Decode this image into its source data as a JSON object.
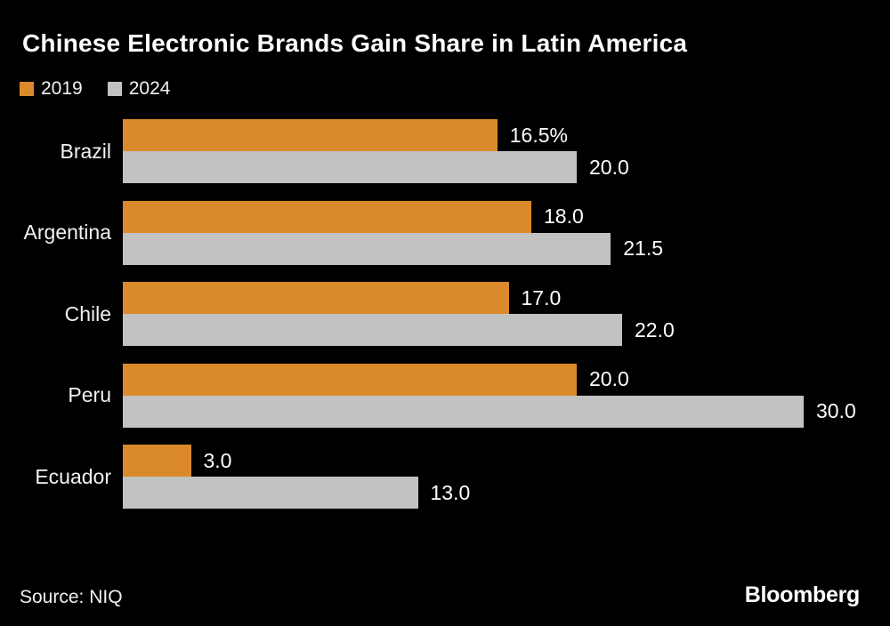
{
  "chart": {
    "title": "Chinese Electronic Brands Gain Share in Latin America",
    "source_label": "Source: NIQ",
    "brand": "Bloomberg"
  },
  "colors": {
    "background": "#000000",
    "text": "#f5f5f5",
    "series_2019": "#db8a2b",
    "series_2024": "#c2c2c2"
  },
  "chart_data": {
    "type": "bar",
    "orientation": "horizontal",
    "title": "Chinese Electronic Brands Gain Share in Latin America",
    "xlabel": "",
    "ylabel": "",
    "xlim": [
      0,
      30
    ],
    "grid": false,
    "legend_position": "top-left",
    "categories": [
      "Brazil",
      "Argentina",
      "Chile",
      "Peru",
      "Ecuador"
    ],
    "series": [
      {
        "name": "2019",
        "color": "#db8a2b",
        "values": [
          16.5,
          18.0,
          17.0,
          20.0,
          3.0
        ],
        "labels": [
          "16.5%",
          "18.0",
          "17.0",
          "20.0",
          "3.0"
        ]
      },
      {
        "name": "2024",
        "color": "#c2c2c2",
        "values": [
          20.0,
          21.5,
          22.0,
          30.0,
          13.0
        ],
        "labels": [
          "20.0",
          "21.5",
          "22.0",
          "30.0",
          "13.0"
        ]
      }
    ]
  }
}
